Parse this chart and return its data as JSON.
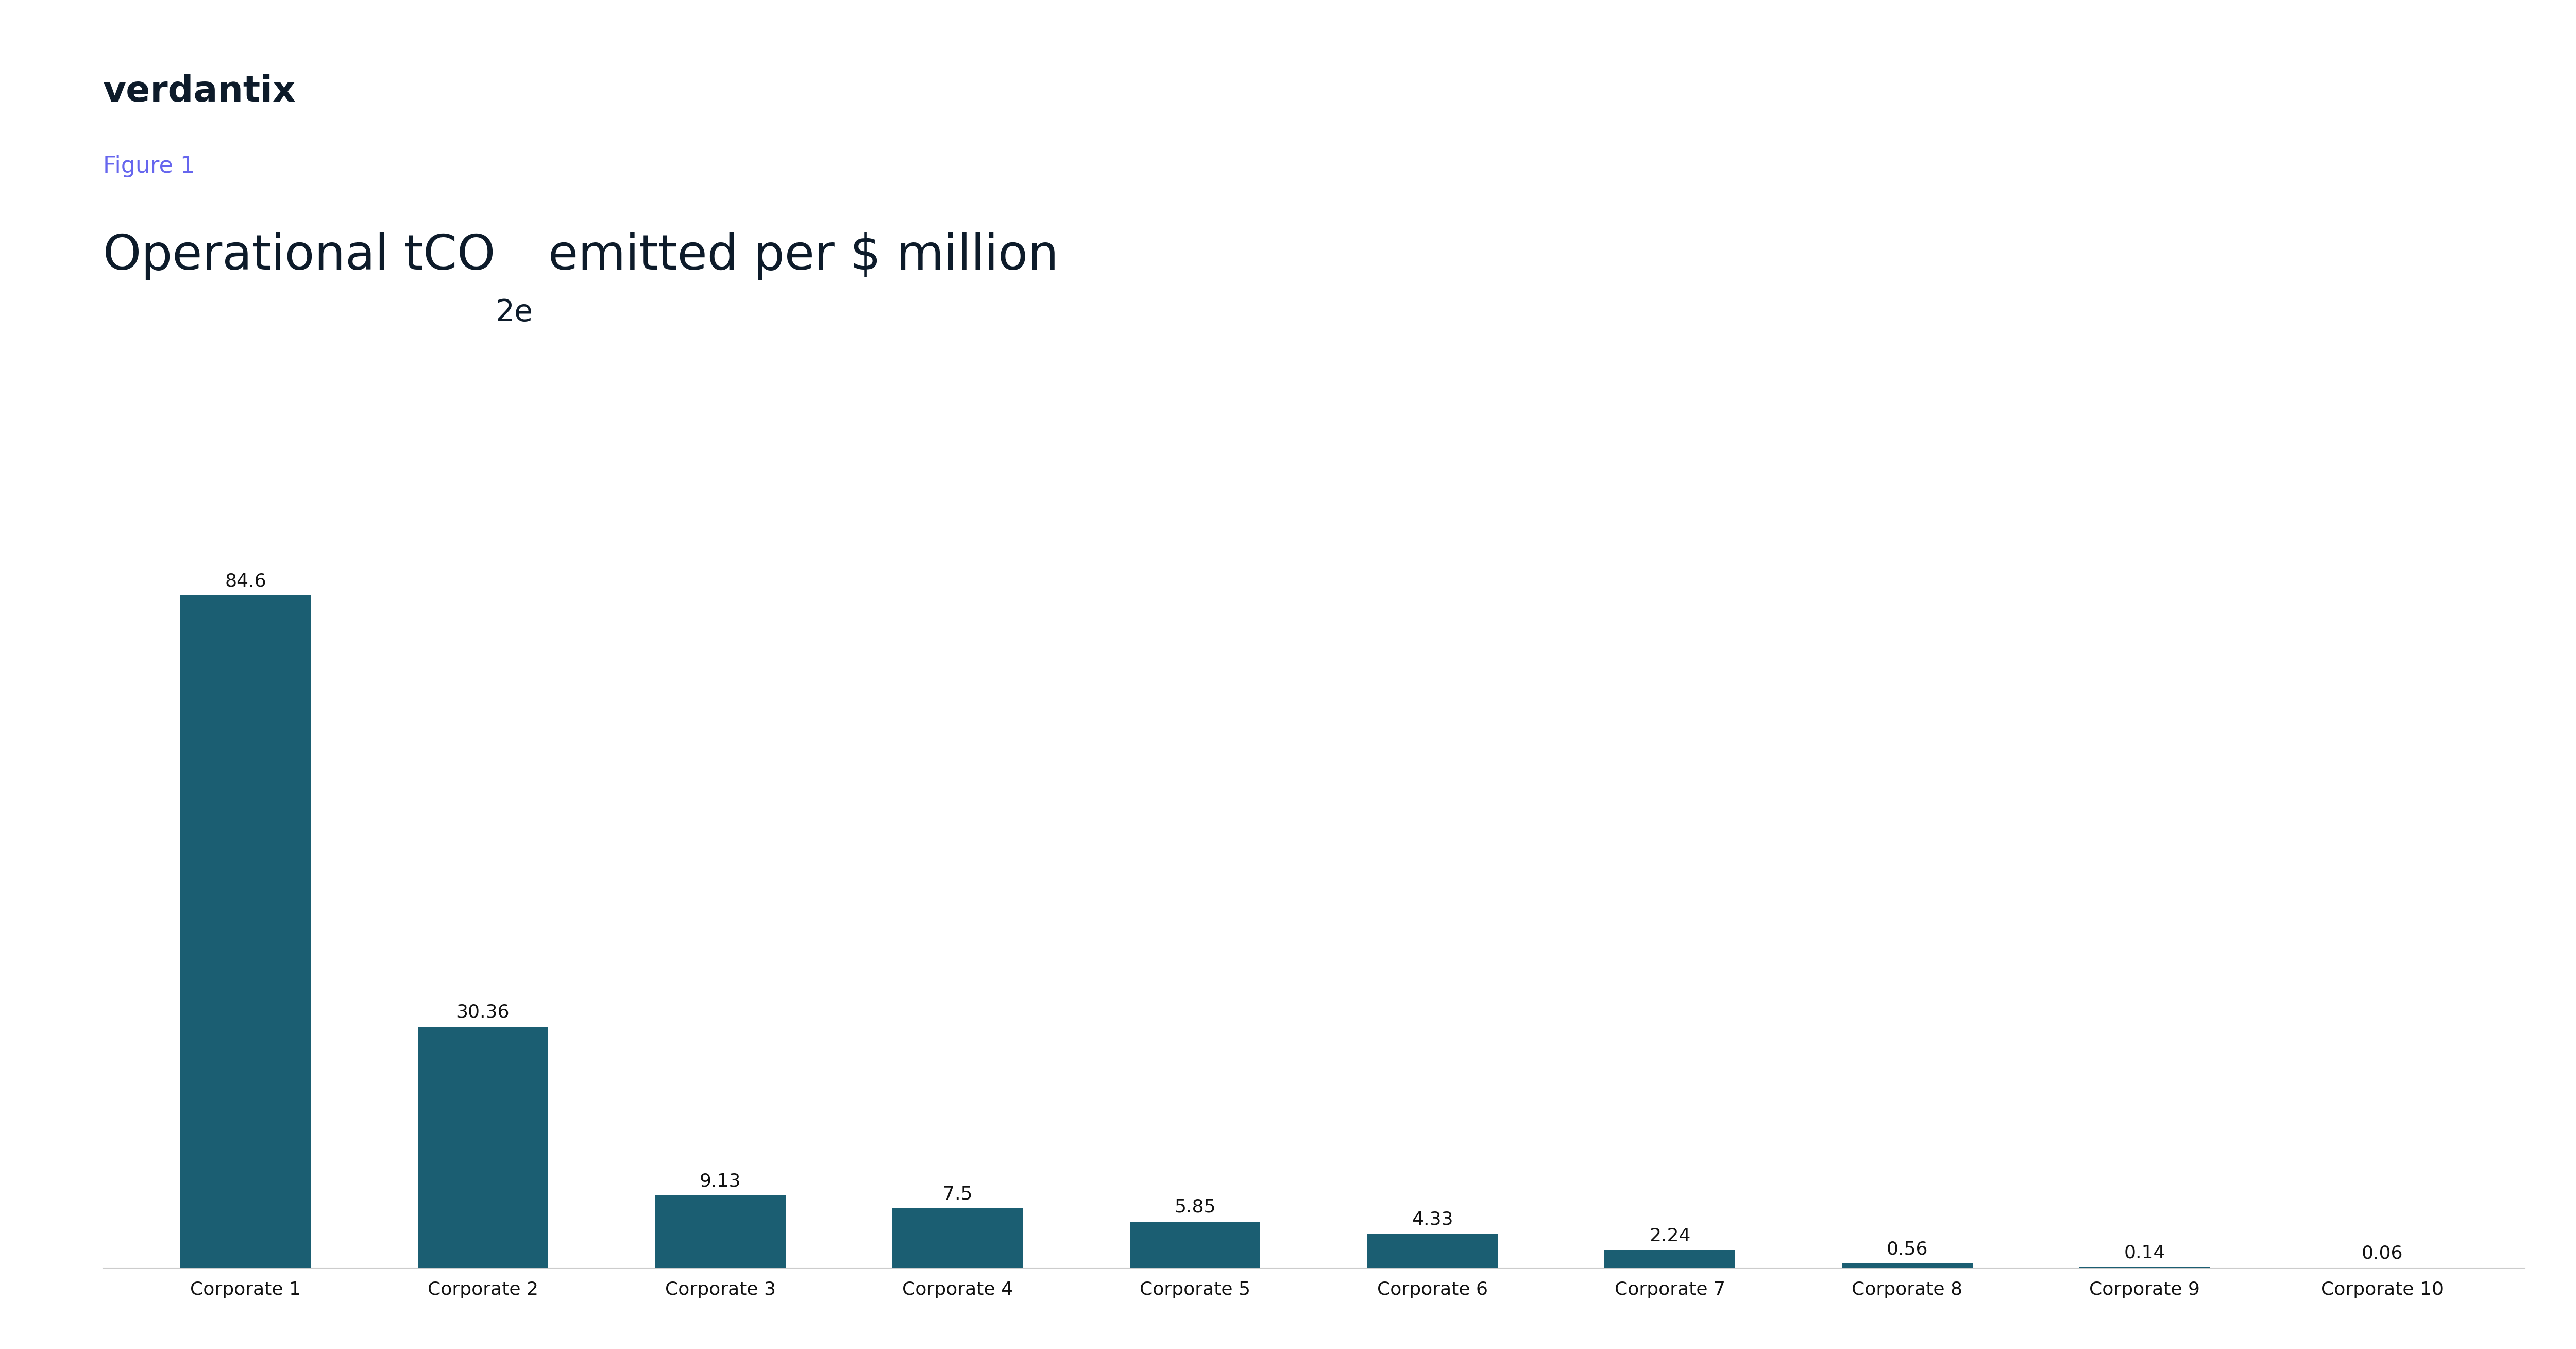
{
  "figure_label": "Figure 1",
  "brand": "verdantix",
  "categories": [
    "Corporate 1",
    "Corporate 2",
    "Corporate 3",
    "Corporate 4",
    "Corporate 5",
    "Corporate 6",
    "Corporate 7",
    "Corporate 8",
    "Corporate 9",
    "Corporate 10"
  ],
  "values": [
    84.6,
    30.36,
    9.13,
    7.5,
    5.85,
    4.33,
    2.24,
    0.56,
    0.14,
    0.06
  ],
  "bar_color": "#1B5E72",
  "title_color": "#0D1B2A",
  "figure_label_color": "#6666EE",
  "brand_color": "#0D1B2A",
  "label_color": "#111111",
  "background_color": "#FFFFFF",
  "bar_width": 0.55,
  "ylim": [
    0,
    95
  ],
  "value_label_fontsize": 26,
  "category_label_fontsize": 26,
  "title_fontsize": 68,
  "title_sub_fontsize": 42,
  "figure_label_fontsize": 32,
  "brand_fontsize": 50,
  "spine_color": "#CCCCCC"
}
